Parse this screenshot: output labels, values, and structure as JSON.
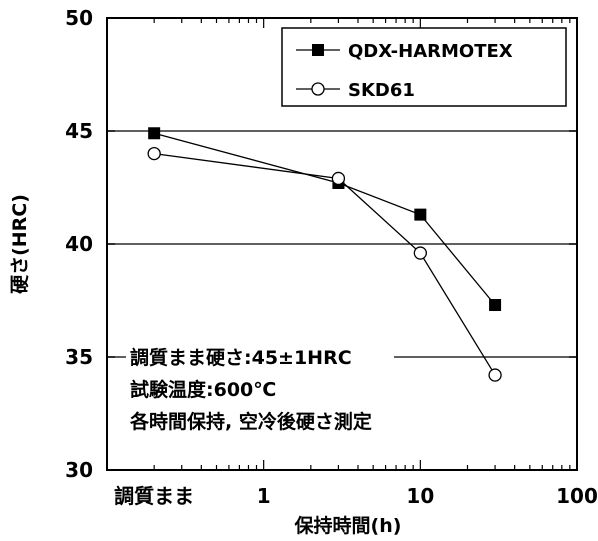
{
  "chart_data": {
    "type": "line",
    "xlabel": "保持時間(h)",
    "ylabel": "硬さ(HRC)",
    "x_scale": "log",
    "xlim": [
      0.1,
      100
    ],
    "ylim": [
      30,
      50
    ],
    "x_ticks": [
      {
        "value": 0.2,
        "label": "調質まま"
      },
      {
        "value": 1,
        "label": "1"
      },
      {
        "value": 10,
        "label": "10"
      },
      {
        "value": 100,
        "label": "100"
      }
    ],
    "y_ticks": [
      30,
      35,
      40,
      45,
      50
    ],
    "y_gridlines": [
      35,
      40,
      45
    ],
    "legend_position": "top-right",
    "series": [
      {
        "name": "QDX-HARMOTEX",
        "marker": "filled-square",
        "points": [
          {
            "x": 0.2,
            "y": 44.9
          },
          {
            "x": 3,
            "y": 42.7
          },
          {
            "x": 10,
            "y": 41.3
          },
          {
            "x": 30,
            "y": 37.3
          }
        ]
      },
      {
        "name": "SKD61",
        "marker": "open-circle",
        "points": [
          {
            "x": 0.2,
            "y": 44.0
          },
          {
            "x": 3,
            "y": 42.9
          },
          {
            "x": 10,
            "y": 39.6
          },
          {
            "x": 30,
            "y": 34.2
          }
        ]
      }
    ],
    "annotations": [
      "調質まま硬さ:45±1HRC",
      "試験温度:600℃",
      "各時間保持, 空冷後硬さ測定"
    ]
  }
}
